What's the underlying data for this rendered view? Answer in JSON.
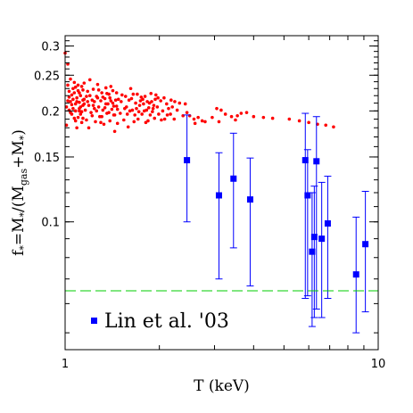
{
  "chart_data": {
    "type": "scatter",
    "xlabel": "T (keV)",
    "ylabel": {
      "main": "f",
      "sub1": "*",
      "mid": "=M",
      "sub2": "*",
      "mid2": "/(M",
      "sub3": "gas",
      "tail": "+M",
      "sub4": "*",
      "close": ")"
    },
    "xscale": "log",
    "yscale": "log",
    "xlim": [
      1,
      10
    ],
    "ylim": [
      0.045,
      0.32
    ],
    "x_ticks": [
      {
        "value": 1,
        "label": "1"
      },
      {
        "value": 10,
        "label": "10"
      }
    ],
    "y_ticks": [
      {
        "value": 0.1,
        "label": "0.1"
      },
      {
        "value": 0.15,
        "label": "0.15"
      },
      {
        "value": 0.2,
        "label": "0.2"
      },
      {
        "value": 0.25,
        "label": "0.25"
      },
      {
        "value": 0.3,
        "label": "0.3"
      }
    ],
    "colors": {
      "scatter": "#ff0000",
      "errorbar": "#0000ff",
      "hline": "#00cc00"
    },
    "hline": {
      "y": 0.065,
      "style": "dashed"
    },
    "legend": {
      "label": "Lin et al. '03",
      "placement": "bottom-left"
    },
    "series": [
      {
        "name": "Lin et al. '03",
        "marker": "square",
        "points": [
          {
            "x": 2.45,
            "y": 0.147,
            "ylo": 0.1,
            "yhi": 0.195
          },
          {
            "x": 3.1,
            "y": 0.118,
            "ylo": 0.07,
            "yhi": 0.154
          },
          {
            "x": 3.45,
            "y": 0.131,
            "ylo": 0.085,
            "yhi": 0.174
          },
          {
            "x": 3.9,
            "y": 0.115,
            "ylo": 0.067,
            "yhi": 0.149
          },
          {
            "x": 5.85,
            "y": 0.147,
            "ylo": 0.062,
            "yhi": 0.197
          },
          {
            "x": 5.95,
            "y": 0.118,
            "ylo": 0.063,
            "yhi": 0.157
          },
          {
            "x": 6.15,
            "y": 0.083,
            "ylo": 0.052,
            "yhi": 0.12
          },
          {
            "x": 6.25,
            "y": 0.091,
            "ylo": 0.055,
            "yhi": 0.125
          },
          {
            "x": 6.35,
            "y": 0.146,
            "ylo": 0.058,
            "yhi": 0.193
          },
          {
            "x": 6.6,
            "y": 0.09,
            "ylo": 0.055,
            "yhi": 0.128
          },
          {
            "x": 6.9,
            "y": 0.099,
            "ylo": 0.062,
            "yhi": 0.133
          },
          {
            "x": 8.5,
            "y": 0.072,
            "ylo": 0.05,
            "yhi": 0.103
          },
          {
            "x": 9.1,
            "y": 0.087,
            "ylo": 0.057,
            "yhi": 0.121
          }
        ]
      },
      {
        "marker": "dot",
        "points": [
          [
            1.0,
            0.287
          ],
          [
            1.02,
            0.268
          ],
          [
            1.04,
            0.244
          ],
          [
            1.05,
            0.221
          ],
          [
            1.07,
            0.239
          ],
          [
            1.08,
            0.209
          ],
          [
            1.1,
            0.227
          ],
          [
            1.11,
            0.2
          ],
          [
            1.13,
            0.233
          ],
          [
            1.14,
            0.214
          ],
          [
            1.01,
            0.205
          ],
          [
            1.03,
            0.218
          ],
          [
            1.05,
            0.196
          ],
          [
            1.06,
            0.23
          ],
          [
            1.08,
            0.188
          ],
          [
            1.09,
            0.212
          ],
          [
            1.11,
            0.224
          ],
          [
            1.12,
            0.196
          ],
          [
            1.14,
            0.207
          ],
          [
            1.15,
            0.238
          ],
          [
            1.01,
            0.183
          ],
          [
            1.03,
            0.226
          ],
          [
            1.04,
            0.212
          ],
          [
            1.06,
            0.203
          ],
          [
            1.07,
            0.191
          ],
          [
            1.09,
            0.217
          ],
          [
            1.1,
            0.235
          ],
          [
            1.12,
            0.205
          ],
          [
            1.13,
            0.186
          ],
          [
            1.15,
            0.215
          ],
          [
            1.02,
            0.213
          ],
          [
            1.04,
            0.198
          ],
          [
            1.05,
            0.208
          ],
          [
            1.07,
            0.224
          ],
          [
            1.08,
            0.232
          ],
          [
            1.1,
            0.192
          ],
          [
            1.11,
            0.211
          ],
          [
            1.13,
            0.199
          ],
          [
            1.14,
            0.228
          ],
          [
            1.16,
            0.201
          ],
          [
            1.02,
            0.235
          ],
          [
            1.03,
            0.201
          ],
          [
            1.06,
            0.215
          ],
          [
            1.08,
            0.2
          ],
          [
            1.09,
            0.18
          ],
          [
            1.11,
            0.203
          ],
          [
            1.12,
            0.22
          ],
          [
            1.14,
            0.191
          ],
          [
            1.15,
            0.209
          ],
          [
            1.17,
            0.219
          ],
          [
            1.17,
            0.189
          ],
          [
            1.18,
            0.226
          ],
          [
            1.19,
            0.207
          ],
          [
            1.2,
            0.243
          ],
          [
            1.21,
            0.198
          ],
          [
            1.22,
            0.214
          ],
          [
            1.23,
            0.229
          ],
          [
            1.24,
            0.203
          ],
          [
            1.25,
            0.187
          ],
          [
            1.26,
            0.219
          ],
          [
            1.27,
            0.236
          ],
          [
            1.28,
            0.205
          ],
          [
            1.29,
            0.193
          ],
          [
            1.3,
            0.213
          ],
          [
            1.31,
            0.224
          ],
          [
            1.32,
            0.201
          ],
          [
            1.33,
            0.184
          ],
          [
            1.34,
            0.216
          ],
          [
            1.35,
            0.231
          ],
          [
            1.36,
            0.197
          ],
          [
            1.37,
            0.209
          ],
          [
            1.38,
            0.222
          ],
          [
            1.39,
            0.188
          ],
          [
            1.4,
            0.213
          ],
          [
            1.41,
            0.202
          ],
          [
            1.42,
            0.227
          ],
          [
            1.43,
            0.195
          ],
          [
            1.44,
            0.176
          ],
          [
            1.45,
            0.214
          ],
          [
            1.46,
            0.206
          ],
          [
            1.18,
            0.212
          ],
          [
            1.2,
            0.22
          ],
          [
            1.22,
            0.194
          ],
          [
            1.24,
            0.212
          ],
          [
            1.26,
            0.2
          ],
          [
            1.28,
            0.228
          ],
          [
            1.3,
            0.186
          ],
          [
            1.32,
            0.218
          ],
          [
            1.34,
            0.204
          ],
          [
            1.36,
            0.223
          ],
          [
            1.38,
            0.198
          ],
          [
            1.4,
            0.233
          ],
          [
            1.42,
            0.21
          ],
          [
            1.44,
            0.195
          ],
          [
            1.46,
            0.224
          ],
          [
            1.47,
            0.202
          ],
          [
            1.48,
            0.215
          ],
          [
            1.5,
            0.197
          ],
          [
            1.52,
            0.221
          ],
          [
            1.54,
            0.189
          ],
          [
            1.19,
            0.18
          ],
          [
            1.23,
            0.207
          ],
          [
            1.27,
            0.217
          ],
          [
            1.31,
            0.193
          ],
          [
            1.35,
            0.209
          ],
          [
            1.39,
            0.217
          ],
          [
            1.43,
            0.206
          ],
          [
            1.47,
            0.185
          ],
          [
            1.51,
            0.212
          ],
          [
            1.55,
            0.203
          ],
          [
            1.56,
            0.219
          ],
          [
            1.58,
            0.196
          ],
          [
            1.6,
            0.214
          ],
          [
            1.62,
            0.23
          ],
          [
            1.64,
            0.201
          ],
          [
            1.66,
            0.187
          ],
          [
            1.68,
            0.21
          ],
          [
            1.7,
            0.222
          ],
          [
            1.72,
            0.199
          ],
          [
            1.74,
            0.213
          ],
          [
            1.57,
            0.205
          ],
          [
            1.59,
            0.181
          ],
          [
            1.61,
            0.2
          ],
          [
            1.63,
            0.216
          ],
          [
            1.65,
            0.222
          ],
          [
            1.67,
            0.195
          ],
          [
            1.69,
            0.203
          ],
          [
            1.71,
            0.19
          ],
          [
            1.73,
            0.207
          ],
          [
            1.75,
            0.218
          ],
          [
            1.76,
            0.196
          ],
          [
            1.78,
            0.209
          ],
          [
            1.8,
            0.219
          ],
          [
            1.82,
            0.201
          ],
          [
            1.84,
            0.188
          ],
          [
            1.86,
            0.21
          ],
          [
            1.88,
            0.223
          ],
          [
            1.9,
            0.199
          ],
          [
            1.92,
            0.207
          ],
          [
            1.94,
            0.215
          ],
          [
            1.77,
            0.215
          ],
          [
            1.79,
            0.2
          ],
          [
            1.81,
            0.186
          ],
          [
            1.83,
            0.212
          ],
          [
            1.85,
            0.204
          ],
          [
            1.87,
            0.195
          ],
          [
            1.89,
            0.212
          ],
          [
            1.91,
            0.203
          ],
          [
            1.93,
            0.191
          ],
          [
            1.95,
            0.221
          ],
          [
            1.97,
            0.205
          ],
          [
            1.99,
            0.196
          ],
          [
            2.02,
            0.213
          ],
          [
            2.05,
            0.2
          ],
          [
            2.08,
            0.19
          ],
          [
            2.11,
            0.209
          ],
          [
            2.14,
            0.203
          ],
          [
            2.17,
            0.196
          ],
          [
            2.2,
            0.205
          ],
          [
            2.24,
            0.212
          ],
          [
            1.98,
            0.217
          ],
          [
            2.03,
            0.189
          ],
          [
            2.07,
            0.217
          ],
          [
            2.12,
            0.195
          ],
          [
            2.18,
            0.214
          ],
          [
            2.23,
            0.19
          ],
          [
            2.28,
            0.201
          ],
          [
            2.32,
            0.21
          ],
          [
            2.38,
            0.194
          ],
          [
            2.45,
            0.198
          ],
          [
            2.42,
            0.209
          ],
          [
            2.5,
            0.194
          ],
          [
            2.58,
            0.19
          ],
          [
            2.66,
            0.192
          ],
          [
            2.74,
            0.188
          ],
          [
            2.8,
            0.187
          ],
          [
            2.95,
            0.192
          ],
          [
            3.05,
            0.203
          ],
          [
            3.15,
            0.201
          ],
          [
            3.25,
            0.196
          ],
          [
            3.4,
            0.193
          ],
          [
            3.55,
            0.194
          ],
          [
            3.65,
            0.197
          ],
          [
            3.8,
            0.198
          ],
          [
            4.0,
            0.193
          ],
          [
            4.3,
            0.192
          ],
          [
            4.6,
            0.191
          ],
          [
            5.2,
            0.19
          ],
          [
            5.6,
            0.188
          ],
          [
            6.0,
            0.186
          ],
          [
            6.4,
            0.184
          ],
          [
            6.8,
            0.183
          ],
          [
            7.2,
            0.181
          ],
          [
            3.1,
            0.187
          ],
          [
            3.5,
            0.189
          ],
          [
            2.6,
            0.185
          ]
        ]
      }
    ]
  }
}
